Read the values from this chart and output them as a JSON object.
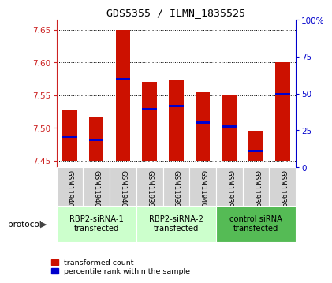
{
  "title": "GDS5355 / ILMN_1835525",
  "samples": [
    "GSM1194001",
    "GSM1194002",
    "GSM1194003",
    "GSM1193996",
    "GSM1193998",
    "GSM1194000",
    "GSM1193995",
    "GSM1193997",
    "GSM1193999"
  ],
  "bar_tops": [
    7.528,
    7.517,
    7.65,
    7.57,
    7.572,
    7.555,
    7.55,
    7.495,
    7.6
  ],
  "bar_bottoms": [
    7.45,
    7.45,
    7.45,
    7.45,
    7.45,
    7.45,
    7.45,
    7.45,
    7.45
  ],
  "blue_marker_values": [
    7.487,
    7.482,
    7.575,
    7.529,
    7.533,
    7.508,
    7.502,
    7.465,
    7.552
  ],
  "ylim_left": [
    7.44,
    7.665
  ],
  "ylim_right": [
    0,
    100
  ],
  "yticks_left": [
    7.45,
    7.5,
    7.55,
    7.6,
    7.65
  ],
  "yticks_right": [
    0,
    25,
    50,
    75,
    100
  ],
  "ytick_labels_right": [
    "0",
    "25",
    "50",
    "75",
    "100%"
  ],
  "bar_color": "#cc1100",
  "blue_color": "#0000cc",
  "groups": [
    {
      "label": "RBP2-siRNA-1\ntransfected",
      "start": 0,
      "end": 3,
      "color": "#ccffcc"
    },
    {
      "label": "RBP2-siRNA-2\ntransfected",
      "start": 3,
      "end": 6,
      "color": "#ccffcc"
    },
    {
      "label": "control siRNA\ntransfected",
      "start": 6,
      "end": 9,
      "color": "#55bb55"
    }
  ],
  "protocol_label": "protocol",
  "left_axis_color": "#cc2222",
  "right_axis_color": "#0000cc",
  "grid_color": "#000000",
  "legend_red_label": "transformed count",
  "legend_blue_label": "percentile rank within the sample",
  "bar_width": 0.55
}
